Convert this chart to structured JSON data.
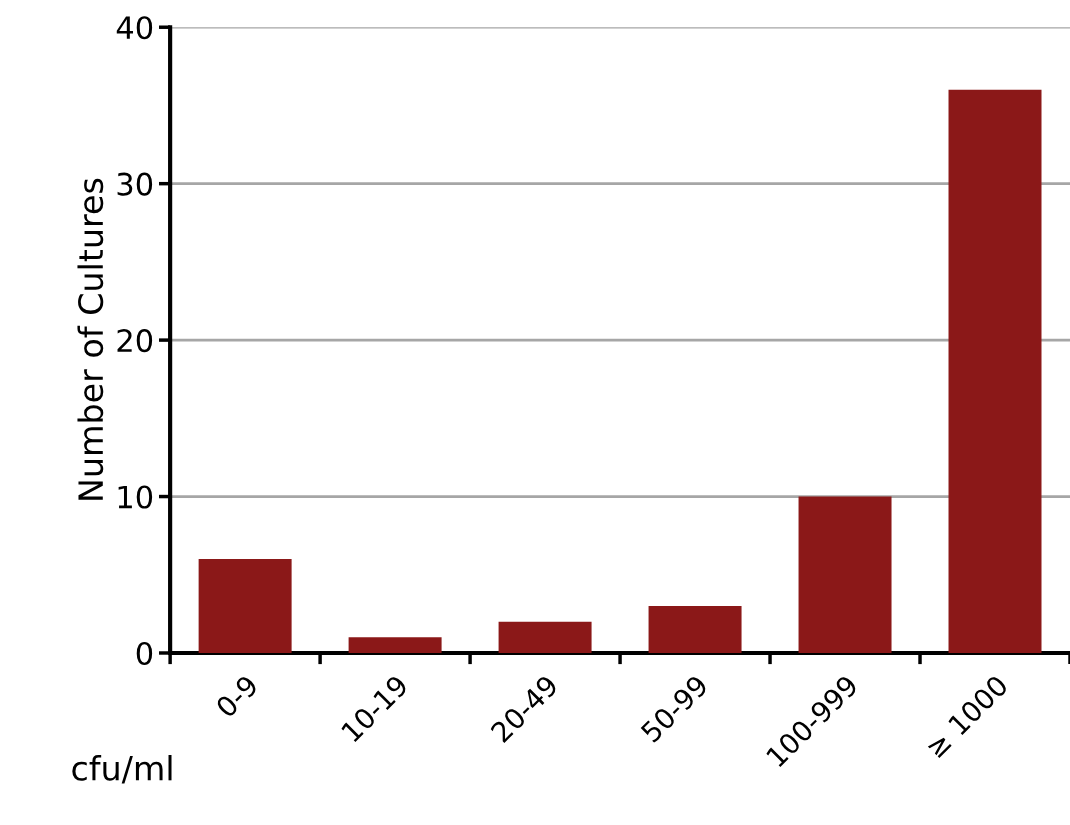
{
  "chart_data": {
    "type": "bar",
    "xlabel": "cfu/ml",
    "ylabel": "Number of Cultures",
    "categories": [
      "0-9",
      "10-19",
      "20-49",
      "50-99",
      "100-999",
      "≥ 1000"
    ],
    "values": [
      6,
      1,
      2,
      3,
      10,
      36
    ],
    "color": "#8b1818",
    "ylim": [
      0,
      40
    ],
    "yticks": [
      0,
      10,
      20,
      30,
      40
    ],
    "grid": "y",
    "legend": false
  }
}
